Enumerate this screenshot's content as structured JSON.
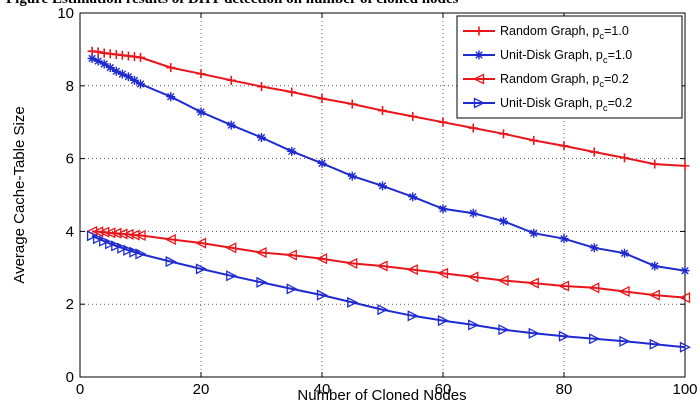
{
  "caption": "Figure Estimation results of DHT-detection on number of cloned nodes",
  "chart_data": {
    "type": "line",
    "xlabel": "Number of Cloned Nodes",
    "ylabel": "Average Cache-Table Size",
    "xlim": [
      0,
      100
    ],
    "ylim": [
      0,
      10
    ],
    "xticks": [
      0,
      20,
      40,
      60,
      80,
      100
    ],
    "yticks": [
      0,
      2,
      4,
      6,
      8,
      10
    ],
    "grid": true,
    "legend_position": "top-right",
    "series": [
      {
        "name": "Random Graph, p",
        "subscript": "c",
        "suffix": "=1.0",
        "color": "#e8161b",
        "marker": "plus",
        "x": [
          2,
          3,
          4,
          5,
          6,
          7,
          8,
          9,
          10,
          15,
          20,
          25,
          30,
          35,
          40,
          45,
          50,
          55,
          60,
          65,
          70,
          75,
          80,
          85,
          90,
          95,
          100
        ],
        "y": [
          8.95,
          8.93,
          8.9,
          8.88,
          8.86,
          8.84,
          8.82,
          8.8,
          8.78,
          8.5,
          8.33,
          8.15,
          7.98,
          7.83,
          7.65,
          7.5,
          7.32,
          7.16,
          7.0,
          6.84,
          6.68,
          6.5,
          6.35,
          6.18,
          6.02,
          5.85,
          5.8
        ]
      },
      {
        "name": "Unit-Disk Graph, p",
        "subscript": "c",
        "suffix": "=1.0",
        "color": "#1f2bcf",
        "marker": "asterisk",
        "x": [
          2,
          3,
          4,
          5,
          6,
          7,
          8,
          9,
          10,
          15,
          20,
          25,
          30,
          35,
          40,
          45,
          50,
          55,
          60,
          65,
          70,
          75,
          80,
          85,
          90,
          95,
          100
        ],
        "y": [
          8.75,
          8.68,
          8.6,
          8.5,
          8.4,
          8.32,
          8.25,
          8.15,
          8.05,
          7.7,
          7.28,
          6.92,
          6.58,
          6.2,
          5.87,
          5.52,
          5.25,
          4.95,
          4.62,
          4.5,
          4.28,
          3.95,
          3.8,
          3.55,
          3.4,
          3.05,
          2.92
        ]
      },
      {
        "name": "Random Graph, p",
        "subscript": "c",
        "suffix": "=0.2",
        "color": "#e8161b",
        "marker": "triangle-left",
        "x": [
          2,
          3,
          4,
          5,
          6,
          7,
          8,
          9,
          10,
          15,
          20,
          25,
          30,
          35,
          40,
          45,
          50,
          55,
          60,
          65,
          70,
          75,
          80,
          85,
          90,
          95,
          100
        ],
        "y": [
          4.0,
          3.99,
          3.98,
          3.96,
          3.95,
          3.93,
          3.92,
          3.9,
          3.89,
          3.78,
          3.68,
          3.55,
          3.42,
          3.35,
          3.25,
          3.12,
          3.05,
          2.95,
          2.85,
          2.75,
          2.65,
          2.58,
          2.5,
          2.45,
          2.35,
          2.25,
          2.18
        ]
      },
      {
        "name": "Unit-Disk Graph, p",
        "subscript": "c",
        "suffix": "=0.2",
        "color": "#1f2bcf",
        "marker": "triangle-right",
        "x": [
          2,
          3,
          4,
          5,
          6,
          7,
          8,
          9,
          10,
          15,
          20,
          25,
          30,
          35,
          40,
          45,
          50,
          55,
          60,
          65,
          70,
          75,
          80,
          85,
          90,
          95,
          100
        ],
        "y": [
          3.88,
          3.8,
          3.73,
          3.66,
          3.6,
          3.54,
          3.48,
          3.43,
          3.38,
          3.17,
          2.97,
          2.78,
          2.6,
          2.42,
          2.25,
          2.05,
          1.85,
          1.68,
          1.55,
          1.43,
          1.3,
          1.2,
          1.12,
          1.05,
          0.98,
          0.9,
          0.82
        ]
      }
    ]
  }
}
